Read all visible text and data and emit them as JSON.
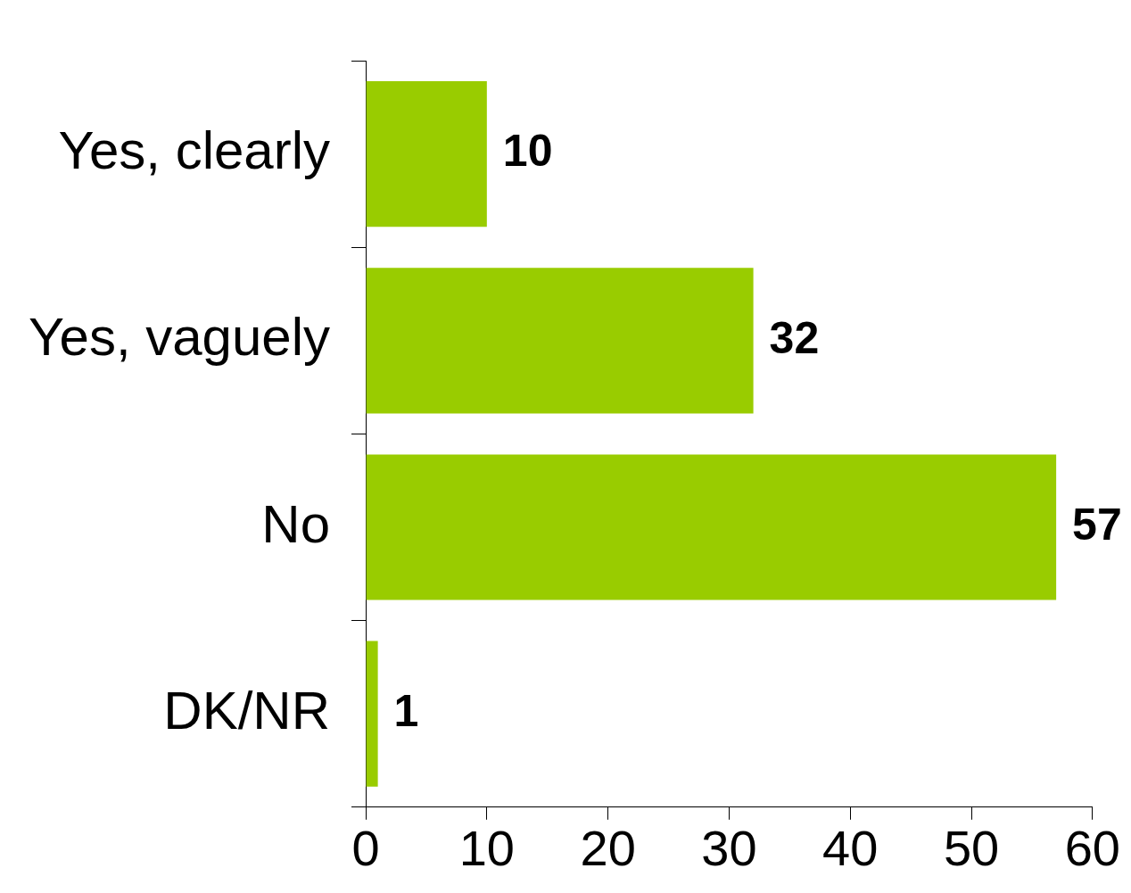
{
  "chart_data": {
    "type": "bar",
    "orientation": "horizontal",
    "categories": [
      "Yes, clearly",
      "Yes, vaguely",
      "No",
      "DK/NR"
    ],
    "values": [
      10,
      32,
      57,
      1
    ],
    "color": "#99cc00",
    "xlim": [
      0,
      60
    ],
    "xticks": [
      0,
      10,
      20,
      30,
      40,
      50,
      60
    ],
    "grid": false,
    "legend": false,
    "data_labels": true
  }
}
